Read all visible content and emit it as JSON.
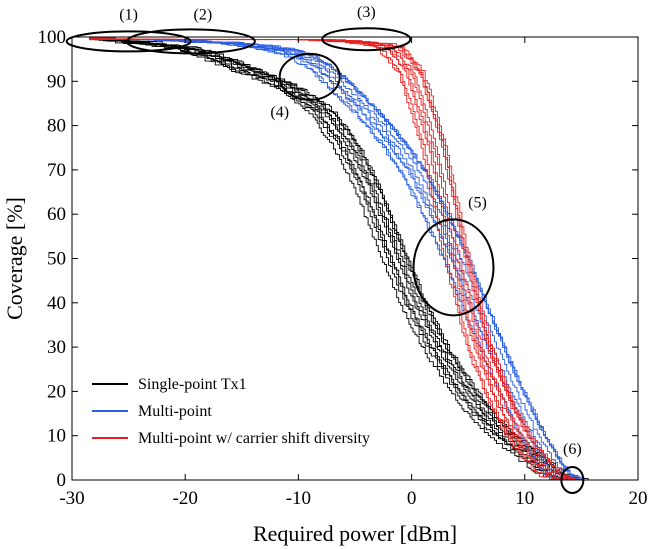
{
  "chart_data": {
    "type": "line",
    "title": "",
    "xlabel": "Required power [dBm]",
    "ylabel": "Coverage [%]",
    "xlim": [
      -30,
      20
    ],
    "ylim": [
      0,
      100
    ],
    "xticks": [
      -30,
      -20,
      -10,
      0,
      10,
      20
    ],
    "yticks": [
      0,
      10,
      20,
      30,
      40,
      50,
      60,
      70,
      80,
      90,
      100
    ],
    "grid": false,
    "legend_position": "bottom-left",
    "runs_per_series": 10,
    "series": [
      {
        "name": "Single-point Tx1",
        "color": "#000000",
        "x": [
          -28,
          -26,
          -24,
          -22,
          -20,
          -18,
          -16,
          -14,
          -12,
          -10,
          -8,
          -6,
          -4,
          -2,
          0,
          2,
          4,
          6,
          8,
          10,
          12,
          13,
          14
        ],
        "values": [
          100,
          99.5,
          99,
          98.5,
          97.5,
          96,
          94,
          92,
          90,
          87,
          83,
          76,
          66,
          53,
          40,
          30,
          22,
          15,
          10,
          6,
          2,
          1,
          0
        ]
      },
      {
        "name": "Multi-point",
        "color": "#2a5fe0",
        "x": [
          -28,
          -24,
          -20,
          -16,
          -12,
          -10,
          -8,
          -6,
          -4,
          -2,
          0,
          2,
          4,
          6,
          8,
          10,
          12,
          13,
          14
        ],
        "values": [
          100,
          100,
          99.5,
          99,
          97.5,
          96,
          93,
          88,
          83,
          77,
          70,
          60,
          49,
          36,
          24,
          13,
          4,
          1,
          0
        ]
      },
      {
        "name": "Multi-point w/ carrier shift diversity",
        "color": "#e62020",
        "x": [
          -28,
          -10,
          -6,
          -4,
          -2,
          0,
          2,
          4,
          6,
          8,
          10,
          12,
          13,
          14
        ],
        "values": [
          100,
          100,
          99.5,
          99,
          98,
          92,
          75,
          50,
          30,
          17,
          8,
          2,
          0.5,
          0
        ]
      }
    ],
    "annotations": [
      {
        "label": "(1)",
        "x": -25,
        "y": 99
      },
      {
        "label": "(2)",
        "x": -19.5,
        "y": 99
      },
      {
        "label": "(3)",
        "x": -4,
        "y": 99.5
      },
      {
        "label": "(4)",
        "x": -9,
        "y": 91
      },
      {
        "label": "(5)",
        "x": 3.7,
        "y": 48
      },
      {
        "label": "(6)",
        "x": 14.2,
        "y": 0
      }
    ]
  }
}
